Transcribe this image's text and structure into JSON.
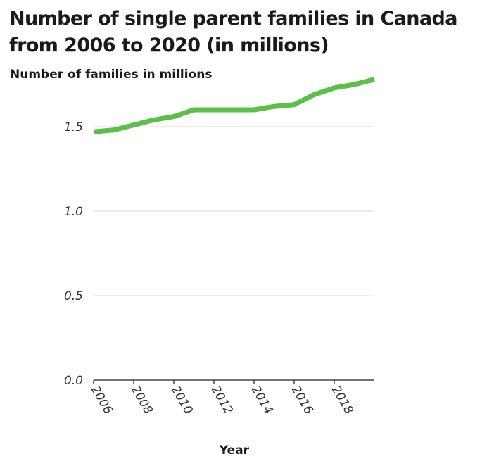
{
  "chart_data": {
    "type": "line",
    "title": "Number of single parent families in Canada from 2006 to 2020 (in millions)",
    "xlabel": "Year",
    "ylabel": "Number of families in millions",
    "x": [
      2006,
      2007,
      2008,
      2009,
      2010,
      2011,
      2012,
      2013,
      2014,
      2015,
      2016,
      2017,
      2018,
      2019,
      2020
    ],
    "series": [
      {
        "values": [
          1.47,
          1.48,
          1.51,
          1.54,
          1.56,
          1.6,
          1.6,
          1.6,
          1.6,
          1.62,
          1.63,
          1.69,
          1.73,
          1.75,
          1.78
        ]
      }
    ],
    "xticks": [
      "2006",
      "2008",
      "2010",
      "2012",
      "2014",
      "2016",
      "2018"
    ],
    "yticks": [
      "0.0",
      "0.5",
      "1.0",
      "1.5"
    ],
    "xlim": [
      2006,
      2020
    ],
    "ylim": [
      0,
      1.8
    ],
    "grid": "horizontal",
    "line_color": "#5bbf4a",
    "grid_color": "#d9d9d9"
  }
}
